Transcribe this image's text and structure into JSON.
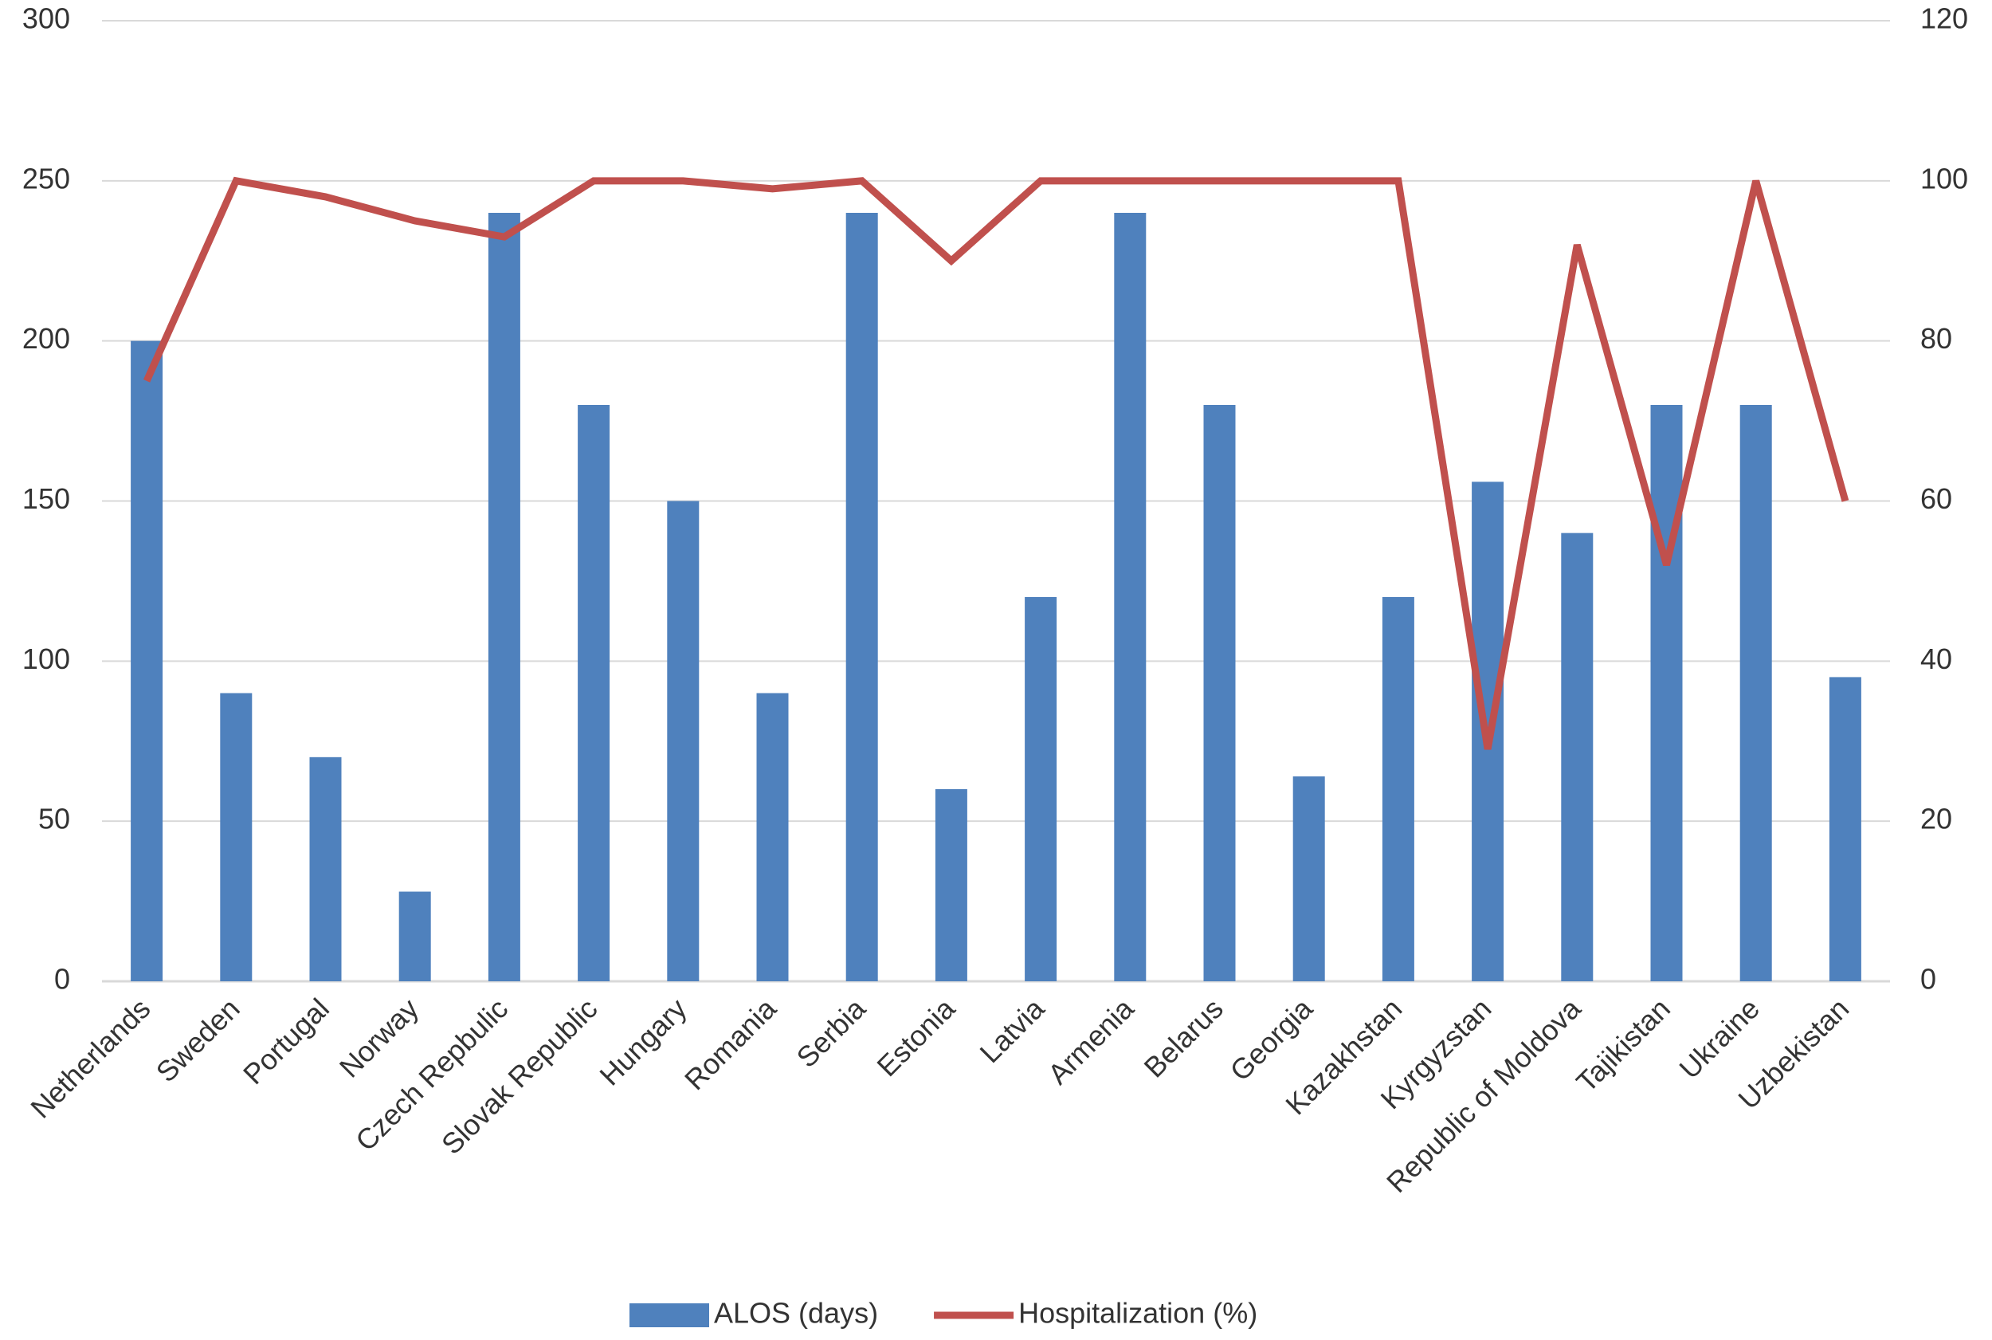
{
  "chart_data": {
    "type": "bar-line",
    "categories": [
      "Netherlands",
      "Sweden",
      "Portugal",
      "Norway",
      "Czech Repbulic",
      "Slovak Republic",
      "Hungary",
      "Romania",
      "Serbia",
      "Estonia",
      "Latvia",
      "Armenia",
      "Belarus",
      "Georgia",
      "Kazakhstan",
      "Kyrgyzstan",
      "Republic of Moldova",
      "Tajikistan",
      "Ukraine",
      "Uzbekistan"
    ],
    "series": [
      {
        "name": "ALOS (days)",
        "type": "bar",
        "color": "#4f81bd",
        "values": [
          200,
          90,
          70,
          28,
          240,
          180,
          150,
          90,
          240,
          60,
          120,
          240,
          180,
          64,
          120,
          156,
          140,
          180,
          180,
          95
        ]
      },
      {
        "name": "Hospitalization (%)",
        "type": "line",
        "axis": "y2",
        "color": "#c0504d",
        "values": [
          75,
          100,
          98,
          95,
          93,
          100,
          100,
          99,
          100,
          90,
          100,
          100,
          100,
          100,
          100,
          29,
          92,
          52,
          100,
          60
        ]
      }
    ],
    "ylim": [
      0,
      300
    ],
    "yticks": [
      0,
      50,
      100,
      150,
      200,
      250,
      300
    ],
    "y2lim": [
      0,
      120
    ],
    "y2ticks": [
      0,
      20,
      40,
      60,
      80,
      100,
      120
    ],
    "grid": true,
    "legend": "bottom"
  }
}
